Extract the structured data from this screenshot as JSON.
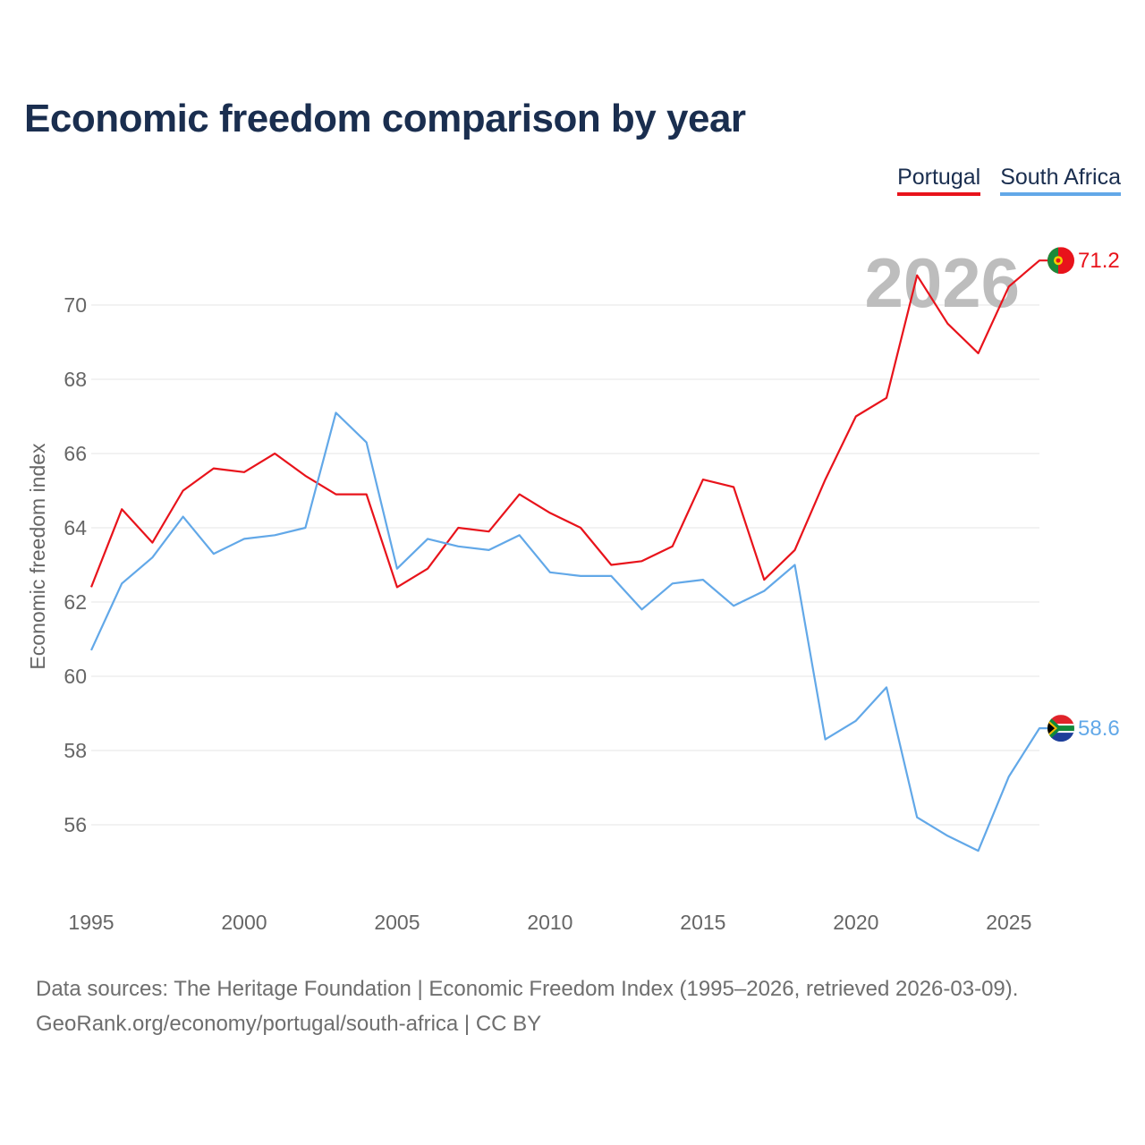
{
  "title": "Economic freedom comparison by year",
  "legend": {
    "portugal": "Portugal",
    "south_africa": "South Africa"
  },
  "colors": {
    "portugal": "#e8131b",
    "south_africa": "#62a8e8",
    "title": "#1a2e4f"
  },
  "footer": {
    "line1": "Data sources: The Heritage Foundation | Economic Freedom Index (1995–2026, retrieved 2026-03-09).",
    "line2": "GeoRank.org/economy/portugal/south-africa | CC BY"
  },
  "chart_data": {
    "type": "line",
    "title": "Economic freedom comparison by year",
    "xlabel": "",
    "ylabel": "Economic freedom index",
    "watermark": "2026",
    "x": [
      1995,
      1996,
      1997,
      1998,
      1999,
      2000,
      2001,
      2002,
      2003,
      2004,
      2005,
      2006,
      2007,
      2008,
      2009,
      2010,
      2011,
      2012,
      2013,
      2014,
      2015,
      2016,
      2017,
      2018,
      2019,
      2020,
      2021,
      2022,
      2023,
      2024,
      2025,
      2026
    ],
    "xticks": [
      1995,
      2000,
      2005,
      2010,
      2015,
      2020,
      2025
    ],
    "yticks": [
      56,
      58,
      60,
      62,
      64,
      66,
      68,
      70
    ],
    "xlim": [
      1995,
      2026
    ],
    "ylim": [
      54,
      72
    ],
    "grid": true,
    "series": [
      {
        "name": "Portugal",
        "color": "#e8131b",
        "end_label": "71.2",
        "flag": "portugal-flag",
        "values": [
          62.4,
          64.5,
          63.6,
          65.0,
          65.6,
          65.5,
          66.0,
          65.4,
          64.9,
          64.9,
          62.4,
          62.9,
          64.0,
          63.9,
          64.9,
          64.4,
          64.0,
          63.0,
          63.1,
          63.5,
          65.3,
          65.1,
          62.6,
          63.4,
          65.3,
          67.0,
          67.5,
          70.8,
          69.5,
          68.7,
          70.5,
          71.2
        ]
      },
      {
        "name": "South Africa",
        "color": "#62a8e8",
        "end_label": "58.6",
        "flag": "south-africa-flag",
        "values": [
          60.7,
          62.5,
          63.2,
          64.3,
          63.3,
          63.7,
          63.8,
          64.0,
          67.1,
          66.3,
          62.9,
          63.7,
          63.5,
          63.4,
          63.8,
          62.8,
          62.7,
          62.7,
          61.8,
          62.5,
          62.6,
          61.9,
          62.3,
          63.0,
          58.3,
          58.8,
          59.7,
          56.2,
          55.7,
          55.3,
          57.3,
          58.6
        ]
      }
    ]
  }
}
